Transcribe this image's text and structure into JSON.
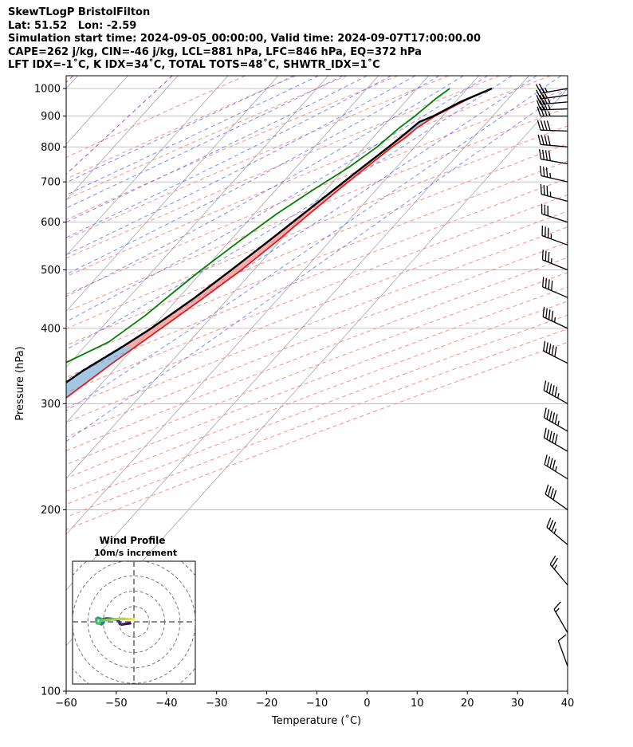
{
  "title_lines": [
    "SkewTLogP BristolFilton",
    "Lat: 51.52   Lon: -2.59",
    "Simulation start time: 2024-09-05_00:00:00, Valid time: 2024-09-07T17:00:00.00",
    "CAPE=262 j/kg, CIN=-46 j/kg, LCL=881 hPa, LFC=846 hPa, EQ=372 hPa",
    "LFT IDX=-1˚C, K IDX=34˚C, TOTAL TOTS=48˚C, SHWTR_IDX=1˚C"
  ],
  "chart_data": {
    "type": "line",
    "chart_kind": "skew-T log-P diagram",
    "xlabel": "Temperature (˚C)",
    "ylabel": "Pressure (hPa)",
    "xlim": [
      -60,
      40
    ],
    "ylim": [
      1050,
      100
    ],
    "y_scale": "log",
    "x_ticks": [
      -60,
      -50,
      -40,
      -30,
      -20,
      -10,
      0,
      10,
      20,
      30,
      40
    ],
    "x_tick_labels": [
      "−60",
      "−50",
      "−40",
      "−30",
      "−20",
      "−10",
      "0",
      "10",
      "20",
      "30",
      "40"
    ],
    "y_ticks": [
      100,
      200,
      300,
      400,
      500,
      600,
      700,
      800,
      900,
      1000
    ],
    "y_tick_labels": [
      "100",
      "200",
      "300",
      "400",
      "500",
      "600",
      "700",
      "800",
      "900",
      "1000"
    ],
    "grid": true,
    "colors": {
      "temperature": "#e41a1c",
      "dewpoint": "#008000",
      "parcel": "#000000",
      "cape_fill": "#f08080",
      "cin_fill": "#5a9acb",
      "dry_adiabat": "#ff6f6f",
      "moist_adiabat": "#5a6cff",
      "mixing_ratio": "#9a3fc8",
      "isotherm": "#a8a8a8"
    },
    "series": [
      {
        "name": "",
        "role": "temperature",
        "points": [
          [
            24.9,
            1000
          ],
          [
            22,
            960
          ],
          [
            18.5,
            900
          ],
          [
            17,
            860
          ],
          [
            16.5,
            830
          ],
          [
            15.5,
            800
          ],
          [
            14,
            740
          ],
          [
            12.5,
            680
          ],
          [
            11,
            620
          ],
          [
            9.5,
            560
          ],
          [
            7.5,
            500
          ],
          [
            5,
            450
          ],
          [
            2,
            400
          ],
          [
            -1.5,
            350
          ],
          [
            -5,
            300
          ],
          [
            -8,
            260
          ],
          [
            -10.5,
            230
          ],
          [
            -13,
            210
          ],
          [
            -15,
            195
          ],
          [
            -17,
            180
          ],
          [
            -20,
            165
          ],
          [
            -23,
            150
          ],
          [
            -27,
            135
          ],
          [
            -32,
            120
          ],
          [
            -36.5,
            108
          ],
          [
            -40,
            100
          ]
        ]
      },
      {
        "name": "",
        "role": "dewpoint",
        "points": [
          [
            16.5,
            1000
          ],
          [
            15.5,
            960
          ],
          [
            14.5,
            900
          ],
          [
            13.5,
            860
          ],
          [
            13,
            830
          ],
          [
            12.5,
            800
          ],
          [
            10.5,
            740
          ],
          [
            7.5,
            680
          ],
          [
            4.5,
            620
          ],
          [
            2,
            560
          ],
          [
            -0.5,
            500
          ],
          [
            -2,
            460
          ],
          [
            -3.5,
            420
          ],
          [
            -6,
            380
          ],
          [
            -11,
            350
          ],
          [
            -15,
            330
          ],
          [
            -17.5,
            310
          ],
          [
            -19,
            290
          ],
          [
            -21,
            260
          ],
          [
            -23,
            230
          ],
          [
            -23,
            210
          ],
          [
            -25.5,
            195
          ],
          [
            -33,
            180
          ],
          [
            -38,
            172
          ],
          [
            -40,
            160
          ],
          [
            -42,
            140
          ],
          [
            -44,
            120
          ],
          [
            -46.5,
            100
          ]
        ]
      },
      {
        "name": "",
        "role": "parcel",
        "points": [
          [
            24.9,
            1000
          ],
          [
            21,
            950
          ],
          [
            18.2,
            900
          ],
          [
            16.4,
            880
          ],
          [
            15.8,
            846
          ],
          [
            14.8,
            800
          ],
          [
            13.2,
            740
          ],
          [
            11.6,
            680
          ],
          [
            9.8,
            620
          ],
          [
            7.8,
            560
          ],
          [
            5.5,
            500
          ],
          [
            3.2,
            450
          ],
          [
            0,
            400
          ],
          [
            -2.5,
            372
          ],
          [
            -6,
            340
          ],
          [
            -9.5,
            300
          ],
          [
            -13.5,
            260
          ],
          [
            -17.5,
            230
          ],
          [
            -22,
            205
          ],
          [
            -26.5,
            185
          ],
          [
            -32,
            165
          ],
          [
            -37,
            150
          ],
          [
            -43,
            135
          ],
          [
            -50,
            120
          ],
          [
            -57,
            108
          ],
          [
            -62,
            100
          ]
        ]
      }
    ],
    "cape_layer_hpa": [
      846,
      372
    ],
    "cin_layer_hpa": [
      1000,
      846
    ],
    "wind_barbs": [
      {
        "p": 1000,
        "kt": 28,
        "dir": 260
      },
      {
        "p": 975,
        "kt": 32,
        "dir": 262
      },
      {
        "p": 950,
        "kt": 35,
        "dir": 265
      },
      {
        "p": 925,
        "kt": 36,
        "dir": 268
      },
      {
        "p": 900,
        "kt": 38,
        "dir": 270
      },
      {
        "p": 850,
        "kt": 40,
        "dir": 272
      },
      {
        "p": 800,
        "kt": 42,
        "dir": 275
      },
      {
        "p": 750,
        "kt": 40,
        "dir": 280
      },
      {
        "p": 700,
        "kt": 38,
        "dir": 283
      },
      {
        "p": 650,
        "kt": 35,
        "dir": 285
      },
      {
        "p": 600,
        "kt": 34,
        "dir": 288
      },
      {
        "p": 550,
        "kt": 35,
        "dir": 290
      },
      {
        "p": 500,
        "kt": 38,
        "dir": 292
      },
      {
        "p": 450,
        "kt": 42,
        "dir": 293
      },
      {
        "p": 400,
        "kt": 45,
        "dir": 295
      },
      {
        "p": 350,
        "kt": 50,
        "dir": 297
      },
      {
        "p": 300,
        "kt": 55,
        "dir": 299
      },
      {
        "p": 270,
        "kt": 55,
        "dir": 300
      },
      {
        "p": 250,
        "kt": 52,
        "dir": 300
      },
      {
        "p": 225,
        "kt": 45,
        "dir": 302
      },
      {
        "p": 200,
        "kt": 40,
        "dir": 305
      },
      {
        "p": 175,
        "kt": 35,
        "dir": 310
      },
      {
        "p": 150,
        "kt": 25,
        "dir": 320
      },
      {
        "p": 125,
        "kt": 15,
        "dir": 330
      },
      {
        "p": 110,
        "kt": 10,
        "dir": 340
      }
    ],
    "hodograph": {
      "title": "Wind Profile",
      "subtitle": "10m/s increment",
      "ring_step_ms": 10,
      "range_ms": 40,
      "colormap": [
        "#440154",
        "#3b528b",
        "#21918c",
        "#5ec962",
        "#fde725"
      ],
      "points": [
        [
          -2.5,
          -1.0
        ],
        [
          -4.5,
          -1.2
        ],
        [
          -6.5,
          -1.5
        ],
        [
          -8,
          -1.8
        ],
        [
          -9,
          -1.3
        ],
        [
          -10,
          0.8
        ],
        [
          -12,
          1.6
        ],
        [
          -15,
          2.0
        ],
        [
          -18,
          2.2
        ],
        [
          -20,
          1.8
        ],
        [
          -21,
          1.0
        ],
        [
          -21.5,
          0.0
        ],
        [
          -22,
          -1.2
        ],
        [
          -21,
          -1.6
        ],
        [
          -20,
          -0.8
        ],
        [
          -19.5,
          0.5
        ],
        [
          -21,
          1.5
        ],
        [
          -22.5,
          2.3
        ],
        [
          -23.5,
          2.6
        ],
        [
          -24.5,
          2.0
        ],
        [
          -24.5,
          0.2
        ],
        [
          -24,
          -1.0
        ],
        [
          -22.5,
          -1.2
        ],
        [
          -22,
          0.2
        ],
        [
          -21,
          1.0
        ],
        [
          -18,
          1.2
        ],
        [
          -14,
          1.6
        ],
        [
          -10,
          1.9
        ],
        [
          -6,
          2.0
        ],
        [
          -3.5,
          1.6
        ],
        [
          -2.5,
          1.9
        ],
        [
          -1.0,
          1.6
        ],
        [
          0,
          1.8
        ]
      ]
    }
  }
}
